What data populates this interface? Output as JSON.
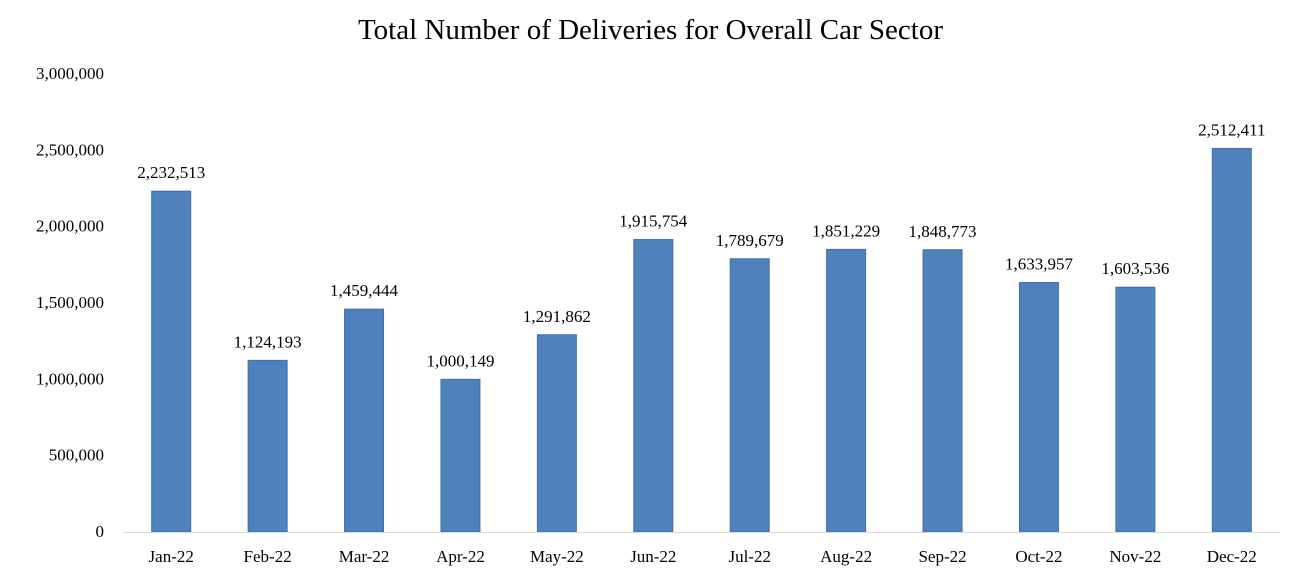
{
  "chart_data": {
    "type": "bar",
    "title": "Total Number of Deliveries for Overall Car Sector",
    "xlabel": "",
    "ylabel": "",
    "categories": [
      "Jan-22",
      "Feb-22",
      "Mar-22",
      "Apr-22",
      "May-22",
      "Jun-22",
      "Jul-22",
      "Aug-22",
      "Sep-22",
      "Oct-22",
      "Nov-22",
      "Dec-22"
    ],
    "values": [
      2232513,
      1124193,
      1459444,
      1000149,
      1291862,
      1915754,
      1789679,
      1851229,
      1848773,
      1633957,
      1603536,
      2512411
    ],
    "data_labels": [
      "2,232,513",
      "1,124,193",
      "1,459,444",
      "1,000,149",
      "1,291,862",
      "1,915,754",
      "1,789,679",
      "1,851,229",
      "1,848,773",
      "1,633,957",
      "1,603,536",
      "2,512,411"
    ],
    "ylim": [
      0,
      3000000
    ],
    "yticks": [
      0,
      500000,
      1000000,
      1500000,
      2000000,
      2500000,
      3000000
    ],
    "ytick_labels": [
      "0",
      "500,000",
      "1,000,000",
      "1,500,000",
      "2,000,000",
      "2,500,000",
      "3,000,000"
    ],
    "grid": false,
    "legend": "none",
    "bar_color": "#4f81bd",
    "bar_border_color": "#3f6ea8",
    "axis_color": "#d9d9d9"
  }
}
